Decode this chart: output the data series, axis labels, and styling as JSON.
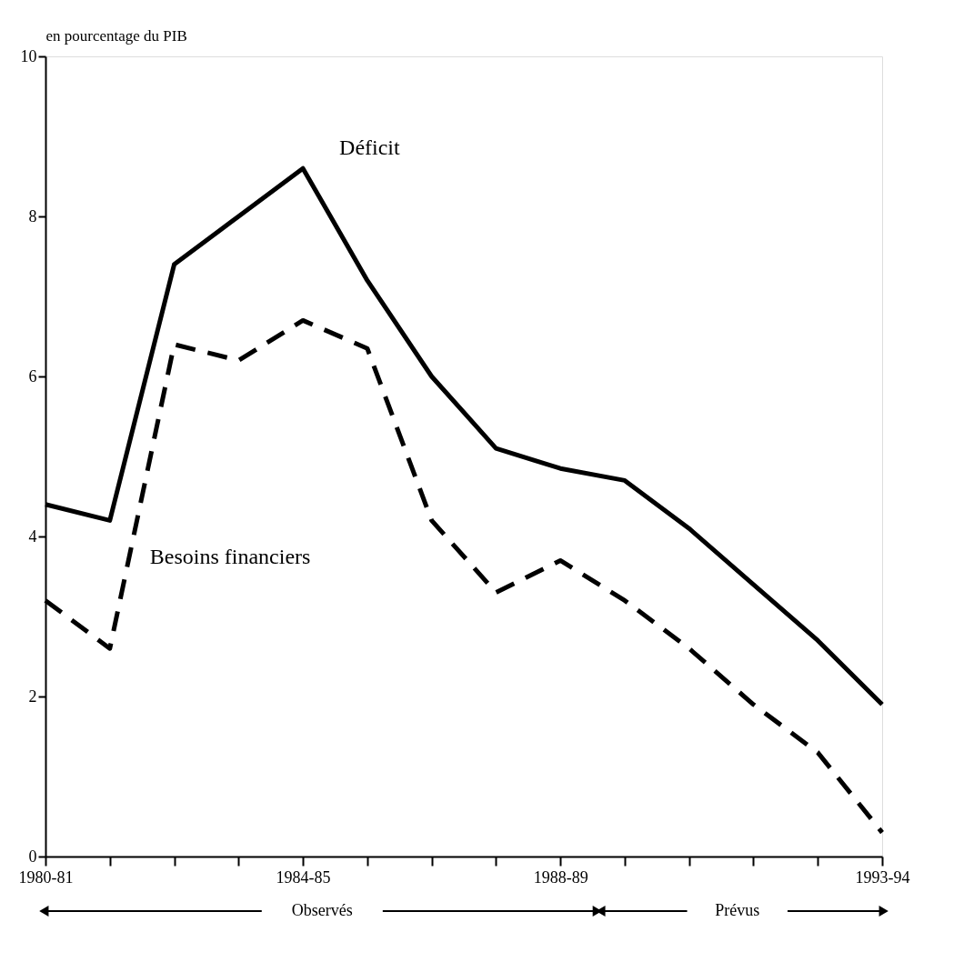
{
  "chart_data": {
    "type": "line",
    "ylabel": "en pourcentage du PIB",
    "categories": [
      "1980-81",
      null,
      null,
      null,
      "1984-85",
      null,
      null,
      null,
      "1988-89",
      null,
      null,
      null,
      null,
      "1993-94"
    ],
    "series": [
      {
        "name": "Déficit",
        "color": "#000000",
        "line_style": "solid",
        "values": [
          4.4,
          4.2,
          7.4,
          8.0,
          8.6,
          7.2,
          6.0,
          5.1,
          4.85,
          4.7,
          4.1,
          3.4,
          2.7,
          1.9
        ]
      },
      {
        "name": "Besoins financiers",
        "color": "#000000",
        "line_style": "dashed",
        "values": [
          3.2,
          2.6,
          6.4,
          6.2,
          6.7,
          6.35,
          4.2,
          3.3,
          3.7,
          3.2,
          2.6,
          1.9,
          1.3,
          0.3
        ]
      }
    ],
    "ylim": [
      0,
      10
    ],
    "yticks": [
      0,
      2,
      4,
      6,
      8,
      10
    ],
    "grid": false,
    "legend": false,
    "marker": "none",
    "annotations": [
      "Observés",
      "Prévus"
    ]
  }
}
